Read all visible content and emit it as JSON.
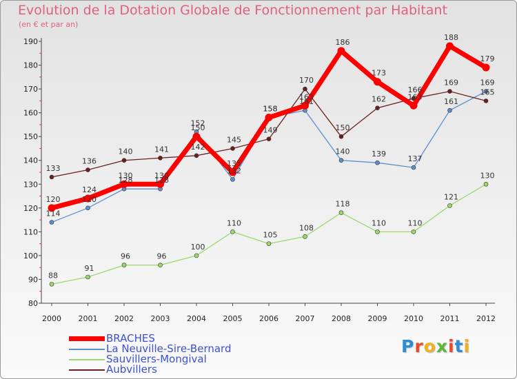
{
  "title": "Evolution de la Dotation Globale de Fonctionnement par Habitant",
  "subtitle": "(en € et par an)",
  "logo": {
    "text": "Proxiti",
    "letters": [
      "P",
      "r",
      "o",
      "x",
      "i",
      "t",
      "i"
    ],
    "colors": [
      "#2e8bd6",
      "#e84b2a",
      "#f2b01e",
      "#5cb83a",
      "#e84b2a",
      "#2e8bd6",
      "#f2b01e"
    ]
  },
  "chart_data": {
    "type": "line",
    "title": "Evolution de la Dotation Globale de Fonctionnement par Habitant",
    "subtitle": "(en € et par an)",
    "xlabel": "",
    "ylabel": "",
    "ylim": [
      80,
      190
    ],
    "yticks": [
      80,
      90,
      100,
      110,
      120,
      130,
      140,
      150,
      160,
      170,
      180,
      190
    ],
    "grid": false,
    "legend": "bottom-left",
    "x": [
      "2000",
      "2001",
      "2002",
      "2003",
      "2004",
      "2005",
      "2006",
      "2007",
      "2008",
      "2009",
      "2010",
      "2011",
      "2012"
    ],
    "series": [
      {
        "name": "BRACHES",
        "color": "#ff0000",
        "values": [
          120,
          124,
          130,
          130,
          150,
          135,
          158,
          163,
          186,
          173,
          163,
          188,
          179
        ]
      },
      {
        "name": "La Neuville-Sire-Bernard",
        "color": "#5b8fcf",
        "values": [
          114,
          120,
          128,
          128,
          152,
          132,
          158,
          161,
          140,
          139,
          137,
          161,
          169
        ]
      },
      {
        "name": "Sauvillers-Mongival",
        "color": "#99d86b",
        "values": [
          88,
          91,
          96,
          96,
          100,
          110,
          105,
          108,
          118,
          110,
          110,
          121,
          130
        ]
      },
      {
        "name": "Aubvillers",
        "color": "#6b1f1f",
        "values": [
          133,
          136,
          140,
          141,
          142,
          145,
          149,
          170,
          150,
          162,
          166,
          169,
          165
        ]
      }
    ]
  }
}
